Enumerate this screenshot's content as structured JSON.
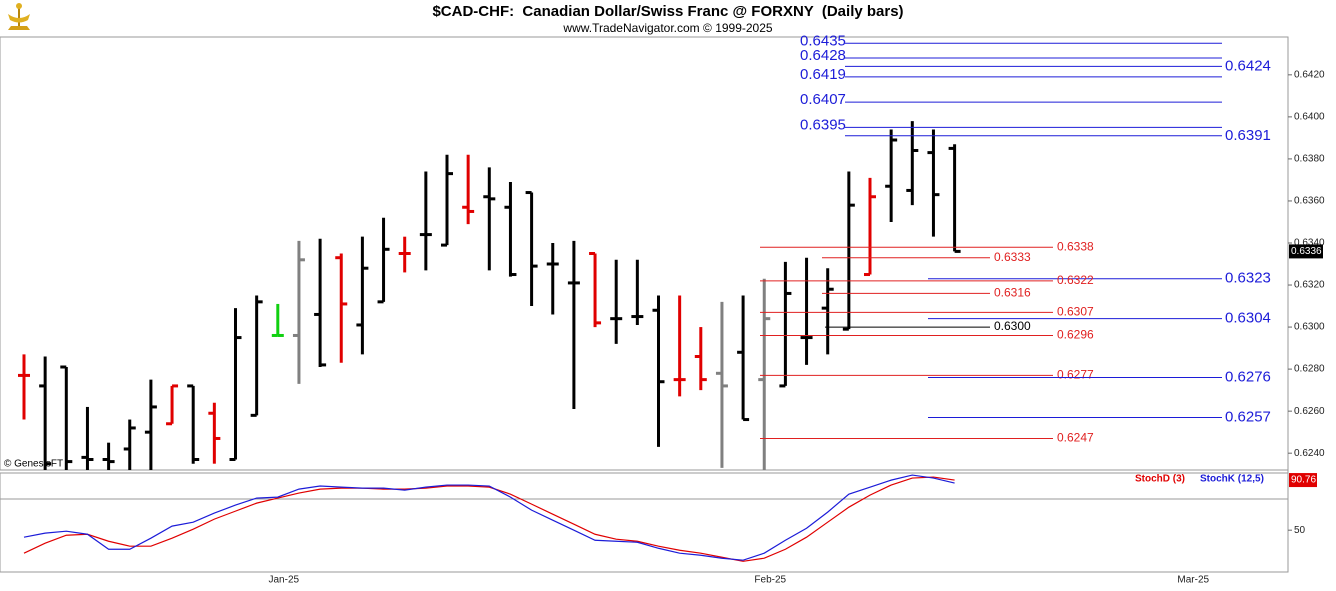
{
  "chart_data": [
    {
      "type": "ohlc",
      "title": "$CAD-CHF:  Canadian Dollar/Swiss Franc @ FORXNY  (Daily bars)",
      "subtitle": "www.TradeNavigator.com © 1999-2025",
      "watermark": "© GenesisFT",
      "categories": [
        null,
        null,
        null,
        null,
        null,
        null,
        null,
        null,
        null,
        null,
        null,
        null,
        "Jan-25",
        null,
        null,
        null,
        null,
        null,
        null,
        null,
        null,
        null,
        null,
        null,
        null,
        null,
        null,
        null,
        null,
        null,
        null,
        null,
        null,
        null,
        null,
        "Feb-25",
        null,
        null,
        null,
        null,
        null,
        null,
        null,
        null,
        null,
        null,
        null,
        null,
        null,
        null,
        null,
        null,
        null,
        null,
        null,
        "Mar-25",
        null,
        null,
        null,
        null
      ],
      "open": [
        0.6277,
        0.6272,
        0.6281,
        0.6238,
        0.6237,
        0.6242,
        0.625,
        0.6254,
        0.6272,
        0.6259,
        0.6237,
        0.6258,
        0.6296,
        0.6296,
        0.6306,
        0.6333,
        0.6301,
        0.6312,
        0.6335,
        0.6344,
        0.6339,
        0.6357,
        0.6362,
        0.6357,
        0.6364,
        0.633,
        0.6321,
        0.6335,
        0.6304,
        0.6305,
        0.6308,
        0.6275,
        0.6286,
        0.6278,
        0.6288,
        0.6275,
        0.6272,
        0.6295,
        0.6309,
        0.6299,
        0.6325,
        0.6367,
        0.6365,
        0.6383,
        0.6385,
        null,
        null,
        null,
        null,
        null,
        null,
        null,
        null,
        null,
        null,
        null,
        null,
        null,
        null,
        null
      ],
      "high": [
        0.6287,
        0.6286,
        0.6281,
        0.6262,
        0.6245,
        0.6256,
        0.6275,
        0.6272,
        0.6272,
        0.6264,
        0.6309,
        0.6315,
        0.6311,
        0.6341,
        0.6342,
        0.6335,
        0.6343,
        0.6352,
        0.6343,
        0.6374,
        0.6382,
        0.6382,
        0.6376,
        0.6369,
        0.6364,
        0.634,
        0.6341,
        0.6335,
        0.6332,
        0.6332,
        0.6315,
        0.6315,
        0.63,
        0.6312,
        0.6315,
        0.6323,
        0.6331,
        0.6333,
        0.6328,
        0.6374,
        0.6371,
        0.6394,
        0.6398,
        0.6394,
        0.6387,
        null,
        null,
        null,
        null,
        null,
        null,
        null,
        null,
        null,
        null,
        null,
        null,
        null,
        null,
        null
      ],
      "low": [
        0.6256,
        0.6232,
        0.6232,
        0.6232,
        0.6232,
        0.6232,
        0.6232,
        0.6254,
        0.6235,
        0.6235,
        0.6237,
        0.6258,
        0.6296,
        0.6273,
        0.6281,
        0.6283,
        0.6287,
        0.6312,
        0.6326,
        0.6327,
        0.6339,
        0.6349,
        0.6327,
        0.6324,
        0.631,
        0.6306,
        0.6261,
        0.63,
        0.6292,
        0.6301,
        0.6243,
        0.6267,
        0.627,
        0.6233,
        0.6256,
        0.6232,
        0.6272,
        0.6282,
        0.6287,
        0.6299,
        0.6325,
        0.635,
        0.6358,
        0.6343,
        0.6336,
        null,
        null,
        null,
        null,
        null,
        null,
        null,
        null,
        null,
        null,
        null,
        null,
        null,
        null,
        null
      ],
      "close": [
        0.6277,
        0.6235,
        0.6236,
        0.6237,
        0.6236,
        0.6252,
        0.6262,
        0.6272,
        0.6237,
        0.6247,
        0.6295,
        0.6312,
        0.6296,
        0.6332,
        0.6282,
        0.6311,
        0.6328,
        0.6337,
        0.6335,
        0.6344,
        0.6373,
        0.6355,
        0.6361,
        0.6325,
        0.6329,
        0.633,
        0.6321,
        0.6302,
        0.6304,
        0.6305,
        0.6274,
        0.6275,
        0.6275,
        0.6272,
        0.6256,
        0.6304,
        0.6316,
        0.6295,
        0.6318,
        0.6358,
        0.6362,
        0.6389,
        0.6384,
        0.6363,
        0.6336,
        null,
        null,
        null,
        null,
        null,
        null,
        null,
        null,
        null,
        null,
        null,
        null,
        null,
        null,
        null
      ],
      "colors": [
        "#e00000",
        "#000000",
        "#000000",
        "#000000",
        "#000000",
        "#000000",
        "#000000",
        "#e00000",
        "#000000",
        "#e00000",
        "#000000",
        "#000000",
        "#10d010",
        "#808080",
        "#000000",
        "#e00000",
        "#000000",
        "#000000",
        "#e00000",
        "#000000",
        "#000000",
        "#e00000",
        "#000000",
        "#000000",
        "#000000",
        "#000000",
        "#000000",
        "#e00000",
        "#000000",
        "#000000",
        "#000000",
        "#e00000",
        "#e00000",
        "#808080",
        "#000000",
        "#808080",
        "#000000",
        "#000000",
        "#000000",
        "#000000",
        "#e00000",
        "#000000",
        "#000000",
        "#000000",
        "#000000",
        null,
        null,
        null,
        null,
        null,
        null,
        null,
        null,
        null,
        null,
        null,
        null,
        null,
        null,
        null
      ],
      "ylim": [
        0.6232,
        0.6438
      ],
      "yticks": [
        {
          "value": 0.624,
          "label": "0.6240"
        },
        {
          "value": 0.626,
          "label": "0.6260"
        },
        {
          "value": 0.628,
          "label": "0.6280"
        },
        {
          "value": 0.63,
          "label": "0.6300"
        },
        {
          "value": 0.632,
          "label": "0.6320"
        },
        {
          "value": 0.634,
          "label": "0.6340"
        },
        {
          "value": 0.636,
          "label": "0.6360"
        },
        {
          "value": 0.638,
          "label": "0.6380"
        },
        {
          "value": 0.64,
          "label": "0.6400"
        },
        {
          "value": 0.642,
          "label": "0.6420"
        }
      ],
      "last": {
        "value": 0.6336,
        "label": "0.6336"
      },
      "levels": [
        {
          "value": 0.6435,
          "label": "0.6435",
          "color": "#1c1cd8"
        },
        {
          "value": 0.6428,
          "label": "0.6428",
          "color": "#1c1cd8"
        },
        {
          "value": 0.6424,
          "label": "0.6424",
          "color": "#1c1cd8"
        },
        {
          "value": 0.6419,
          "label": "0.6419",
          "color": "#1c1cd8"
        },
        {
          "value": 0.6407,
          "label": "0.6407",
          "color": "#1c1cd8"
        },
        {
          "value": 0.6395,
          "label": "0.6395",
          "color": "#1c1cd8"
        },
        {
          "value": 0.6391,
          "label": "0.6391",
          "color": "#1c1cd8"
        },
        {
          "value": 0.6338,
          "label": "0.6338",
          "color": "#e02020"
        },
        {
          "value": 0.6333,
          "label": "0.6333",
          "color": "#e02020"
        },
        {
          "value": 0.6323,
          "label": "0.6323",
          "color": "#1c1cd8"
        },
        {
          "value": 0.6322,
          "label": "0.6322",
          "color": "#e02020"
        },
        {
          "value": 0.6316,
          "label": "0.6316",
          "color": "#e02020"
        },
        {
          "value": 0.6307,
          "label": "0.6307",
          "color": "#e02020"
        },
        {
          "value": 0.6304,
          "label": "0.6304",
          "color": "#1c1cd8"
        },
        {
          "value": 0.63,
          "label": "0.6300",
          "color": "#000000"
        },
        {
          "value": 0.6296,
          "label": "0.6296",
          "color": "#e02020"
        },
        {
          "value": 0.6277,
          "label": "0.6277",
          "color": "#e02020"
        },
        {
          "value": 0.6276,
          "label": "0.6276",
          "color": "#1c1cd8"
        },
        {
          "value": 0.6257,
          "label": "0.6257",
          "color": "#1c1cd8"
        },
        {
          "value": 0.6247,
          "label": "0.6247",
          "color": "#e02020"
        }
      ]
    },
    {
      "type": "line",
      "series": [
        {
          "name": "StochD (3)",
          "color": "#e00000",
          "values": [
            31.3,
            39.4,
            45.9,
            46.7,
            41.0,
            37.0,
            37.0,
            43.5,
            50.8,
            59.0,
            65.5,
            72.0,
            76.1,
            80.2,
            83.4,
            84.2,
            84.2,
            83.4,
            83.4,
            84.2,
            85.9,
            85.9,
            85.0,
            79.3,
            71.2,
            63.0,
            54.9,
            46.7,
            42.7,
            41.0,
            37.0,
            33.7,
            31.3,
            28.0,
            24.7,
            27.2,
            34.5,
            44.3,
            56.5,
            68.7,
            78.5,
            86.7,
            92.4,
            93.2,
            90.76,
            null,
            null,
            null,
            null,
            null,
            null,
            null,
            null,
            null,
            null,
            null,
            null,
            null,
            null,
            null
          ],
          "value_labels": [
            null,
            null,
            null,
            null,
            null,
            null,
            null,
            null,
            null,
            null,
            null,
            null,
            null,
            null,
            null,
            null,
            null,
            null,
            null,
            null,
            null,
            null,
            null,
            null,
            null,
            null,
            null,
            null,
            null,
            null,
            null,
            null,
            null,
            null,
            null,
            null,
            null,
            null,
            null,
            null,
            null,
            null,
            null,
            null,
            "90.76",
            null,
            null,
            null,
            null,
            null,
            null,
            null,
            null,
            null,
            null,
            null,
            null,
            null,
            null,
            null
          ]
        },
        {
          "name": "StochK (12,5)",
          "color": "#1c1cd8",
          "values": [
            44.3,
            47.6,
            49.2,
            46.7,
            34.5,
            34.5,
            43.5,
            53.3,
            56.5,
            63.9,
            70.4,
            76.1,
            76.9,
            83.4,
            85.9,
            85.0,
            84.2,
            84.2,
            82.6,
            85.0,
            86.7,
            86.7,
            85.9,
            76.9,
            66.3,
            58.1,
            50.0,
            41.8,
            41.0,
            40.2,
            35.3,
            31.3,
            29.6,
            27.2,
            25.6,
            31.3,
            41.8,
            51.6,
            64.7,
            79.3,
            85.0,
            90.7,
            94.8,
            92.4,
            88.3,
            null,
            null,
            null,
            null,
            null,
            null,
            null,
            null,
            null,
            null,
            null,
            null,
            null,
            null,
            null
          ]
        }
      ],
      "ylim": [
        16,
        96.5
      ],
      "yticks": [
        50
      ]
    }
  ]
}
